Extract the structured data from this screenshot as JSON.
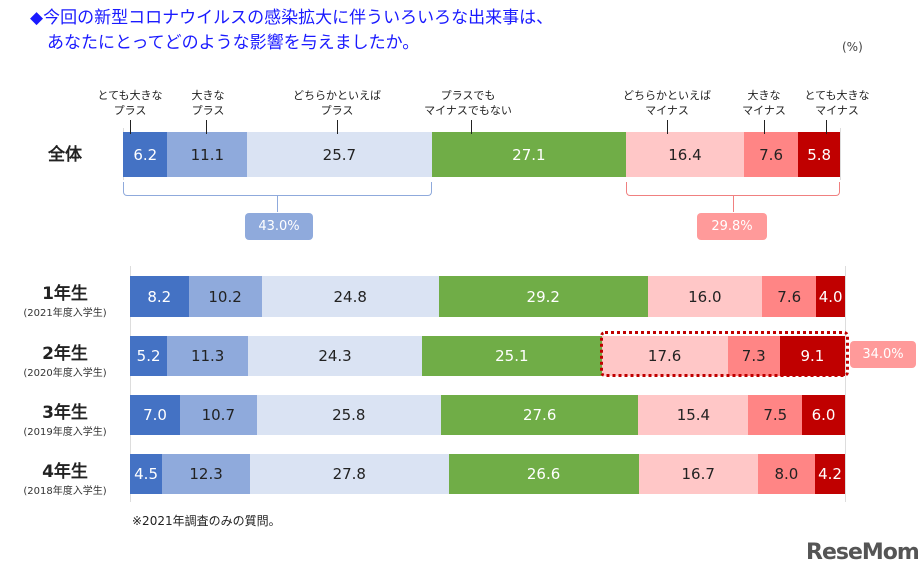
{
  "title": "◆今回の新型コロナウイルスの感染拡大に伴ういろいろな出来事は、\n　あなたにとってどのような影響を与えましたか。",
  "unit": "(%)",
  "footnote": "※2021年調査のみの質問。",
  "logo": "ReseMom",
  "colors": [
    "#4472C4",
    "#8FAADC",
    "#DAE3F3",
    "#70AD47",
    "#FFC7C7",
    "#FF8585",
    "#C00000"
  ],
  "chart_data": {
    "type": "bar",
    "orientation": "horizontal-stacked-100",
    "categories_legend": [
      "とても大きな\nプラス",
      "大きな\nプラス",
      "どちらかといえば\nプラス",
      "プラスでも\nマイナスでもない",
      "どちらかといえば\nマイナス",
      "大きな\nマイナス",
      "とても大きな\nマイナス"
    ],
    "rows": [
      {
        "label": "全体",
        "sub": "",
        "values": [
          6.2,
          11.1,
          25.7,
          27.1,
          16.4,
          7.6,
          5.8
        ]
      },
      {
        "label": "1年生",
        "sub": "(2021年度入学生)",
        "values": [
          8.2,
          10.2,
          24.8,
          29.2,
          16.0,
          7.6,
          4.0
        ]
      },
      {
        "label": "2年生",
        "sub": "(2020年度入学生)",
        "values": [
          5.2,
          11.3,
          24.3,
          25.1,
          17.6,
          7.3,
          9.1
        ]
      },
      {
        "label": "3年生",
        "sub": "(2019年度入学生)",
        "values": [
          7.0,
          10.7,
          25.8,
          27.6,
          15.4,
          7.5,
          6.0
        ]
      },
      {
        "label": "4年生",
        "sub": "(2018年度入学生)",
        "values": [
          4.5,
          12.3,
          27.8,
          26.6,
          16.7,
          8.0,
          4.2
        ]
      }
    ],
    "annotations": {
      "plus_total": "43.0%",
      "minus_total": "29.8%",
      "row2_minus_total": "34.0%"
    }
  }
}
